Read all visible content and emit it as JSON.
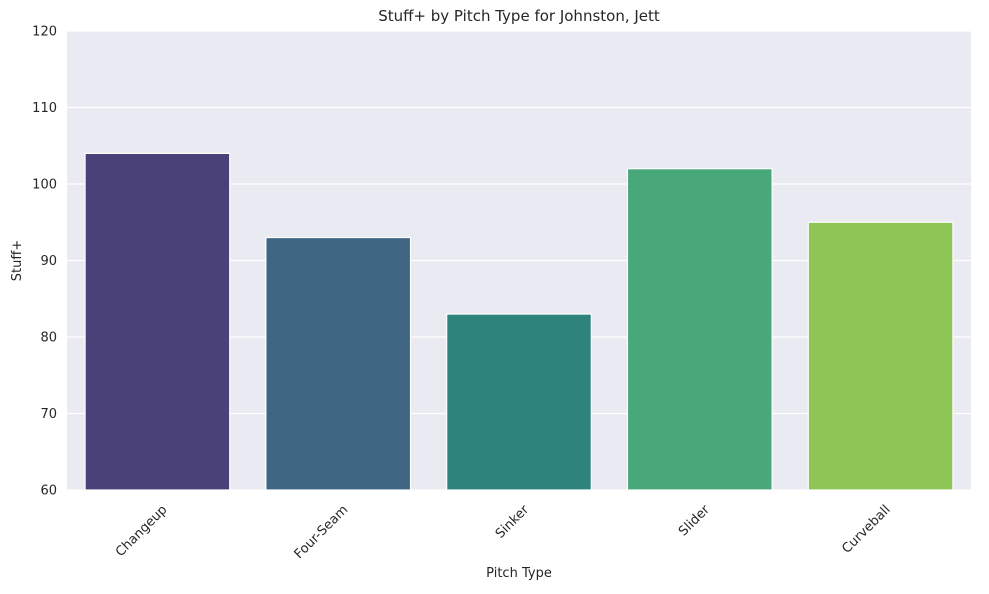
{
  "chart_data": {
    "type": "bar",
    "title": "Stuff+ by Pitch Type for Johnston, Jett",
    "xlabel": "Pitch Type",
    "ylabel": "Stuff+",
    "categories": [
      "Changeup",
      "Four-Seam",
      "Sinker",
      "Slider",
      "Curveball"
    ],
    "values": [
      104,
      93,
      83,
      102,
      95
    ],
    "colors": [
      "#4a4178",
      "#3e6582",
      "#2e837d",
      "#48a879",
      "#8ec556"
    ],
    "ylim": [
      60,
      120
    ],
    "yticks": [
      60,
      70,
      80,
      90,
      100,
      110,
      120
    ],
    "grid": true,
    "background": "#eaeaf2",
    "legend": "none"
  }
}
